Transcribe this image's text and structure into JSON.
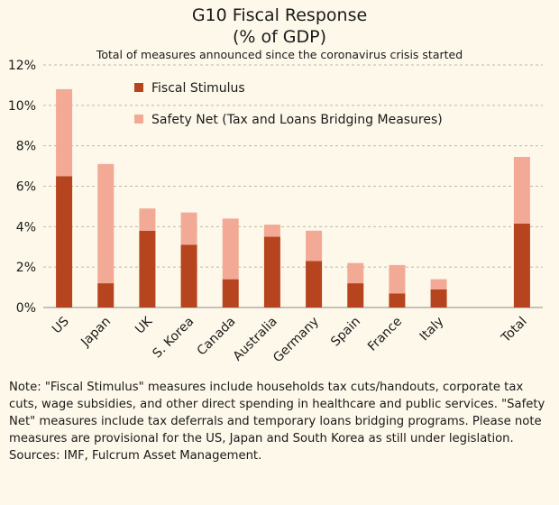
{
  "header": {
    "title_line1": "G10 Fiscal Response",
    "title_line2": "(% of GDP)",
    "subtitle": "Total of measures announced since the coronavirus crisis started"
  },
  "note": "Note: \"Fiscal Stimulus\" measures include households tax cuts/handouts, corporate tax cuts, wage subsidies, and other direct spending in healthcare and public services. \"Safety Net\" measures include tax deferrals and temporary loans bridging programs. Please note measures are provisional for the US, Japan and South Korea as still under legislation. Sources: IMF, Fulcrum Asset Management.",
  "chart_data": {
    "type": "bar",
    "stacked": true,
    "categories": [
      "US",
      "Japan",
      "UK",
      "S. Korea",
      "Canada",
      "Australia",
      "Germany",
      "Spain",
      "France",
      "Italy",
      "",
      "Total"
    ],
    "series": [
      {
        "name": "Fiscal Stimulus",
        "color": "#b5441f",
        "values": [
          6.5,
          1.2,
          3.8,
          3.1,
          1.4,
          3.5,
          2.3,
          1.2,
          0.7,
          0.9,
          null,
          4.15
        ]
      },
      {
        "name": "Safety Net (Tax and Loans Bridging Measures)",
        "color": "#f2aa96",
        "values": [
          4.3,
          5.9,
          1.1,
          1.6,
          3.0,
          0.6,
          1.5,
          1.0,
          1.4,
          0.5,
          null,
          3.3
        ]
      }
    ],
    "yticks": [
      "0%",
      "2%",
      "4%",
      "6%",
      "8%",
      "10%",
      "12%"
    ],
    "ylim": [
      0,
      12
    ],
    "grid": "horizontal dashed",
    "legend_position": "top-left"
  }
}
